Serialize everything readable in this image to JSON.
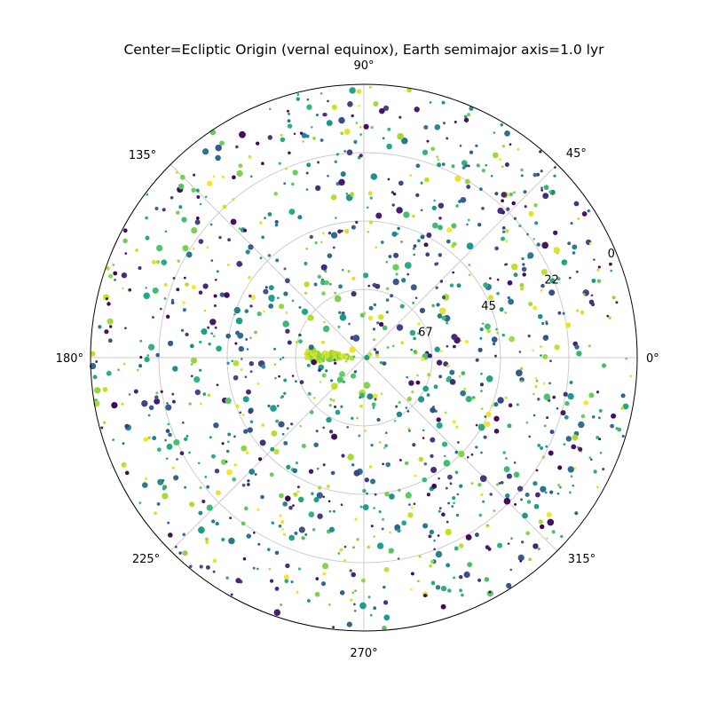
{
  "chart_data": {
    "type": "scatter",
    "projection": "polar",
    "title": "Center=Ecliptic Origin (vernal equinox), Earth semimajor axis=1.0 lyr",
    "theta_ticks": [
      "0°",
      "45°",
      "90°",
      "135°",
      "180°",
      "225°",
      "270°",
      "315°"
    ],
    "theta_tick_values_deg": [
      0,
      45,
      90,
      135,
      180,
      225,
      270,
      315
    ],
    "radial_tick_labels": [
      "0",
      "22",
      "45",
      "67"
    ],
    "radial_tick_values": [
      0,
      22.5,
      45,
      67.5
    ],
    "radial_axis": "inverted latitude: 90 at center, 0 at outer edge",
    "rlim": [
      90,
      0
    ],
    "radial_label_angle_deg": 22.5,
    "grid": true,
    "colormap": "viridis",
    "colors": [
      "#440154",
      "#3b528b",
      "#21918c",
      "#5ec962",
      "#fde725"
    ],
    "point_count_estimate": 1400,
    "cluster": {
      "theta_deg": 178,
      "r": 12,
      "note": "dense yellow-green group near 180°"
    },
    "points": [
      [
        1,
        1,
        3.1,
        0.55
      ],
      [
        38,
        72,
        2.1,
        0.55
      ],
      [
        62,
        79,
        1.6,
        0.33
      ],
      [
        92,
        14,
        2.6,
        0.75
      ],
      [
        118,
        29,
        1.6,
        0.36
      ],
      [
        145,
        46,
        1.8,
        0.95
      ],
      [
        173,
        84,
        1.7,
        0.04
      ],
      [
        175,
        11,
        3.9,
        0.91
      ],
      [
        176,
        6,
        3.4,
        0.88
      ],
      [
        179,
        14,
        4.2,
        0.86
      ],
      [
        181,
        9,
        3.6,
        0.92
      ],
      [
        183,
        17,
        2.8,
        0.84
      ],
      [
        176,
        19,
        2.4,
        0.93
      ],
      [
        182,
        4,
        3.0,
        0.89
      ],
      [
        205,
        41,
        3.1,
        0.46
      ],
      [
        232,
        63,
        2.3,
        0.73
      ],
      [
        258,
        33,
        2.1,
        0.12
      ],
      [
        276,
        51,
        1.6,
        0.59
      ],
      [
        302,
        22,
        3.2,
        0.48
      ],
      [
        331,
        88,
        1.5,
        0.97
      ],
      [
        12,
        42,
        2.4,
        0.91
      ],
      [
        27,
        18,
        3.3,
        0.62
      ],
      [
        49,
        58,
        2.2,
        0.3
      ],
      [
        71,
        24,
        1.8,
        0.81
      ],
      [
        84,
        47,
        3.5,
        0.08
      ],
      [
        106,
        66,
        2.5,
        0.52
      ],
      [
        129,
        13,
        1.5,
        0.69
      ],
      [
        151,
        35,
        2.9,
        0.4
      ],
      [
        163,
        62,
        1.7,
        0.98
      ],
      [
        196,
        27,
        2.0,
        0.57
      ],
      [
        217,
        9,
        3.4,
        0.76
      ],
      [
        244,
        55,
        2.3,
        0.19
      ],
      [
        267,
        16,
        1.8,
        0.93
      ],
      [
        289,
        71,
        2.6,
        0.44
      ],
      [
        313,
        39,
        3.1,
        0.66
      ],
      [
        344,
        7,
        2.4,
        0.27
      ],
      [
        356,
        52,
        1.6,
        0.85
      ],
      [
        7,
        30,
        1.9,
        0.06
      ],
      [
        55,
        12,
        2.8,
        0.71
      ],
      [
        99,
        81,
        2.2,
        0.38
      ]
    ]
  }
}
